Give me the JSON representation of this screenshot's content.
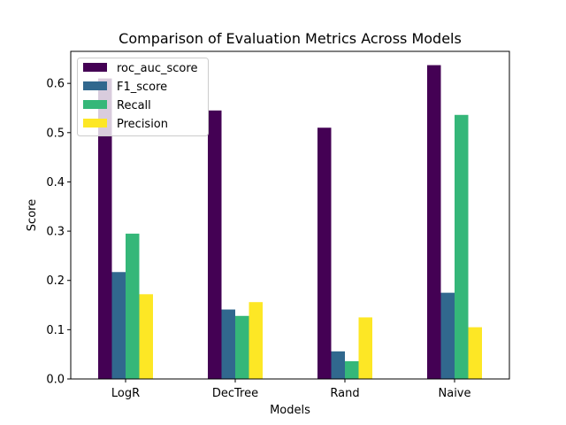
{
  "chart_data": {
    "type": "bar",
    "title": "Comparison of Evaluation Metrics Across Models",
    "xlabel": "Models",
    "ylabel": "Score",
    "categories": [
      "LogR",
      "DecTree",
      "Rand",
      "Naive"
    ],
    "ylim": [
      0,
      0.665
    ],
    "yticks": [
      "0.0",
      "0.1",
      "0.2",
      "0.3",
      "0.4",
      "0.5",
      "0.6"
    ],
    "legend_position": "top-left",
    "grid": false,
    "series": [
      {
        "name": "roc_auc_score",
        "color": "#440154",
        "values": [
          0.61,
          0.545,
          0.51,
          0.637
        ]
      },
      {
        "name": "F1_score",
        "color": "#31688e",
        "values": [
          0.217,
          0.141,
          0.056,
          0.175
        ]
      },
      {
        "name": "Recall",
        "color": "#35b779",
        "values": [
          0.295,
          0.128,
          0.036,
          0.536
        ]
      },
      {
        "name": "Precision",
        "color": "#fde725",
        "values": [
          0.172,
          0.156,
          0.125,
          0.105
        ]
      }
    ]
  }
}
